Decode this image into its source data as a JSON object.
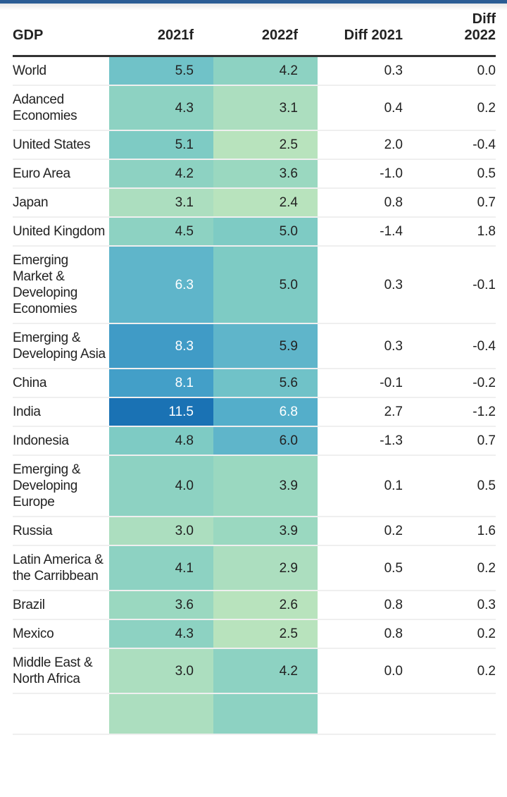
{
  "table": {
    "headers": [
      "GDP",
      "2021f",
      "2022f",
      "Diff 2021",
      "Diff\n2022"
    ],
    "header_lines": {
      "gdp": "GDP",
      "y2021": "2021f",
      "y2022": "2022f",
      "diff2021": "Diff 2021",
      "diff2022_line1": "Diff",
      "diff2022_line2": "2022"
    },
    "rows": [
      {
        "name": "World",
        "f2021": "5.5",
        "f2022": "4.2",
        "diff2021": "0.3",
        "diff2022": "0.0"
      },
      {
        "name": "Adanced Economies",
        "f2021": "4.3",
        "f2022": "3.1",
        "diff2021": "0.4",
        "diff2022": "0.2"
      },
      {
        "name": "United States",
        "f2021": "5.1",
        "f2022": "2.5",
        "diff2021": "2.0",
        "diff2022": "-0.4"
      },
      {
        "name": "Euro Area",
        "f2021": "4.2",
        "f2022": "3.6",
        "diff2021": "-1.0",
        "diff2022": "0.5"
      },
      {
        "name": "Japan",
        "f2021": "3.1",
        "f2022": "2.4",
        "diff2021": "0.8",
        "diff2022": "0.7"
      },
      {
        "name": "United Kingdom",
        "f2021": "4.5",
        "f2022": "5.0",
        "diff2021": "-1.4",
        "diff2022": "1.8"
      },
      {
        "name": "Emerging Market & Developing Economies",
        "f2021": "6.3",
        "f2022": "5.0",
        "diff2021": "0.3",
        "diff2022": "-0.1"
      },
      {
        "name": "Emerging & Developing Asia",
        "f2021": "8.3",
        "f2022": "5.9",
        "diff2021": "0.3",
        "diff2022": "-0.4"
      },
      {
        "name": "China",
        "f2021": "8.1",
        "f2022": "5.6",
        "diff2021": "-0.1",
        "diff2022": "-0.2"
      },
      {
        "name": "India",
        "f2021": "11.5",
        "f2022": "6.8",
        "diff2021": "2.7",
        "diff2022": "-1.2"
      },
      {
        "name": "Indonesia",
        "f2021": "4.8",
        "f2022": "6.0",
        "diff2021": "-1.3",
        "diff2022": "0.7"
      },
      {
        "name": "Emerging & Developing Europe",
        "f2021": "4.0",
        "f2022": "3.9",
        "diff2021": "0.1",
        "diff2022": "0.5"
      },
      {
        "name": "Russia",
        "f2021": "3.0",
        "f2022": "3.9",
        "diff2021": "0.2",
        "diff2022": "1.6"
      },
      {
        "name": "Latin America & the Carribbean",
        "f2021": "4.1",
        "f2022": "2.9",
        "diff2021": "0.5",
        "diff2022": "0.2"
      },
      {
        "name": "Brazil",
        "f2021": "3.6",
        "f2022": "2.6",
        "diff2021": "0.8",
        "diff2022": "0.3"
      },
      {
        "name": "Mexico",
        "f2021": "4.3",
        "f2022": "2.5",
        "diff2021": "0.8",
        "diff2022": "0.2"
      },
      {
        "name": "Middle East & North Africa",
        "f2021": "3.0",
        "f2022": "4.2",
        "diff2021": "0.0",
        "diff2022": "0.2"
      }
    ]
  },
  "heat_scale": {
    "stops": [
      {
        "value": 2.4,
        "color": "#b8e3bd"
      },
      {
        "value": 3.0,
        "color": "#acdebf"
      },
      {
        "value": 3.6,
        "color": "#9ad8c0"
      },
      {
        "value": 4.2,
        "color": "#8dd2c2"
      },
      {
        "value": 4.8,
        "color": "#7ecbc4"
      },
      {
        "value": 5.5,
        "color": "#70c2c8"
      },
      {
        "value": 6.3,
        "color": "#5fb5ca"
      },
      {
        "value": 6.8,
        "color": "#54aeca"
      },
      {
        "value": 8.1,
        "color": "#439fc8"
      },
      {
        "value": 8.3,
        "color": "#409bc6"
      },
      {
        "value": 11.5,
        "color": "#1a72b4"
      }
    ],
    "dark_text_threshold": 6.3
  },
  "colors": {
    "top_bar": "#2b5c94"
  }
}
